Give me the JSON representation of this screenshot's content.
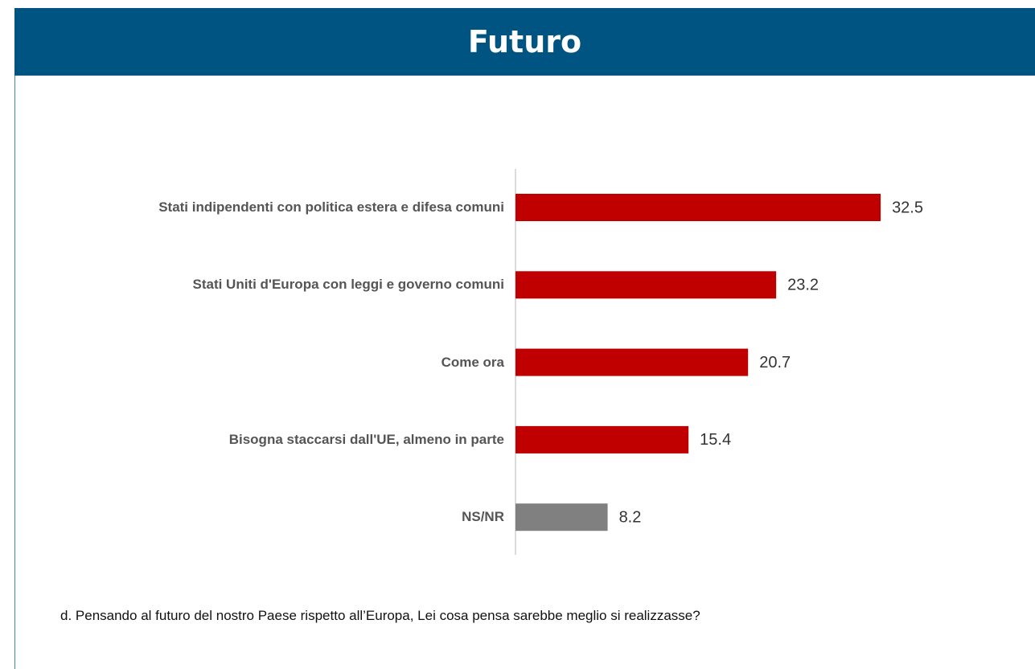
{
  "header": {
    "title": "Futuro"
  },
  "chart_data": {
    "type": "bar",
    "orientation": "horizontal",
    "categories": [
      "Stati indipendenti con politica estera e difesa comuni",
      "Stati Uniti d'Europa con leggi e governo comuni",
      "Come ora",
      "Bisogna staccarsi dall'UE, almeno in parte",
      "NS/NR"
    ],
    "values": [
      32.5,
      23.2,
      20.7,
      15.4,
      8.2
    ],
    "colors": [
      "#c00000",
      "#c00000",
      "#c00000",
      "#c00000",
      "#808080"
    ],
    "xlim": [
      0,
      35
    ]
  },
  "footnote": "d. Pensando al futuro del nostro Paese rispetto all’Europa, Lei cosa pensa sarebbe meglio si realizzasse?"
}
